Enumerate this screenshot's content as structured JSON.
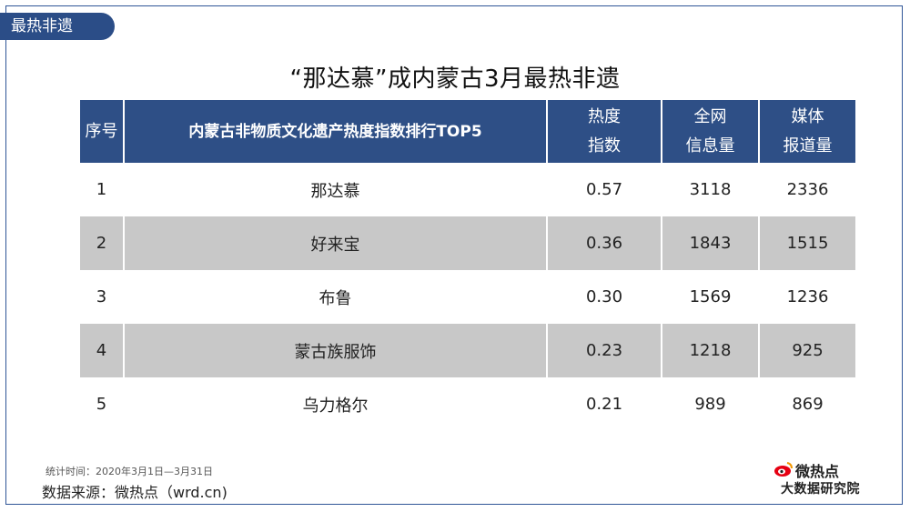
{
  "tag": "最热非遗",
  "title": "“那达慕”成内蒙古3月最热非遗",
  "table": {
    "headers": [
      [
        "序号"
      ],
      [
        "内蒙古非物质文化遗产热度指数排行TOP5"
      ],
      [
        "热度",
        "指数"
      ],
      [
        "全网",
        "信息量"
      ],
      [
        "媒体",
        "报道量"
      ]
    ],
    "rows": [
      [
        "1",
        "那达慕",
        "0.57",
        "3118",
        "2336"
      ],
      [
        "2",
        "好来宝",
        "0.36",
        "1843",
        "1515"
      ],
      [
        "3",
        "布鲁",
        "0.30",
        "1569",
        "1236"
      ],
      [
        "4",
        "蒙古族服饰",
        "0.23",
        "1218",
        "925"
      ],
      [
        "5",
        "乌力格尔",
        "0.21",
        "989",
        "869"
      ]
    ]
  },
  "footer": {
    "stat_time": "统计时间：2020年3月1日—3月31日",
    "source": "数据来源：微热点（wrd.cn)"
  },
  "logo": {
    "top": "微热点",
    "bottom": "大数据研究院",
    "icon": "weibo-eye-icon",
    "color": "#e60012"
  },
  "colors": {
    "header_bg": "#2e4f86",
    "shade_row": "#c8c8c8",
    "tag_bg": "#2b4d87"
  }
}
